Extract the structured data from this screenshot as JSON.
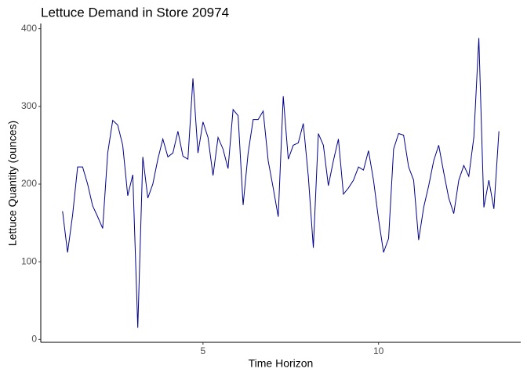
{
  "chart_data": {
    "type": "line",
    "title": "Lettuce Demand in Store 20974",
    "x_label": "Time Horizon",
    "y_label": "Lettuce Quantity (ounces)",
    "x": [
      1,
      1.143,
      1.286,
      1.429,
      1.571,
      1.714,
      1.857,
      2,
      2.143,
      2.286,
      2.429,
      2.571,
      2.714,
      2.857,
      3,
      3.143,
      3.286,
      3.429,
      3.571,
      3.714,
      3.857,
      4,
      4.143,
      4.286,
      4.429,
      4.571,
      4.714,
      4.857,
      5,
      5.143,
      5.286,
      5.429,
      5.571,
      5.714,
      5.857,
      6,
      6.143,
      6.286,
      6.429,
      6.571,
      6.714,
      6.857,
      7,
      7.143,
      7.286,
      7.429,
      7.571,
      7.714,
      7.857,
      8,
      8.143,
      8.286,
      8.429,
      8.571,
      8.714,
      8.857,
      9,
      9.143,
      9.286,
      9.429,
      9.571,
      9.714,
      9.857,
      10,
      10.143,
      10.286,
      10.429,
      10.571,
      10.714,
      10.857,
      11,
      11.143,
      11.286,
      11.429,
      11.571,
      11.714,
      11.857,
      12,
      12.143,
      12.286,
      12.429,
      12.571,
      12.714,
      12.857,
      13,
      13.143,
      13.286,
      13.429
    ],
    "series": [
      {
        "color": "#00008B",
        "values": [
          165,
          112,
          160,
          222,
          222,
          200,
          172,
          158,
          143,
          240,
          282,
          276,
          250,
          185,
          212,
          15,
          235,
          182,
          200,
          232,
          258,
          235,
          240,
          268,
          236,
          232,
          336,
          240,
          280,
          260,
          211,
          260,
          245,
          220,
          296,
          288,
          173,
          240,
          283,
          283,
          294,
          230,
          195,
          158,
          313,
          232,
          250,
          253,
          278,
          210,
          118,
          265,
          250,
          198,
          230,
          258,
          187,
          195,
          205,
          222,
          218,
          243,
          205,
          155,
          112,
          130,
          245,
          265,
          263,
          222,
          205,
          128,
          170,
          198,
          230,
          250,
          215,
          182,
          162,
          205,
          224,
          210,
          260,
          388,
          170,
          205,
          168,
          268
        ]
      }
    ],
    "xlim": [
      0.38,
      14.05
    ],
    "xticks": [
      5,
      10
    ],
    "ylim": [
      -3.7,
      406.7
    ],
    "yticks": [
      0,
      100,
      200,
      300,
      400
    ]
  }
}
